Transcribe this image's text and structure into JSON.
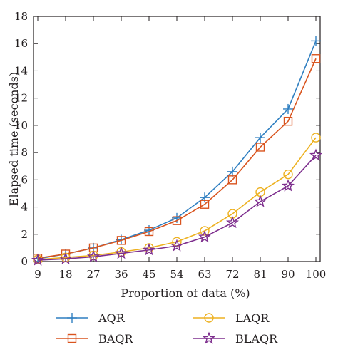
{
  "chart_data": {
    "type": "line",
    "xlabel": "Proportion of data (%)",
    "ylabel": "Elapsed time (seconds)",
    "categories": [
      "9",
      "18",
      "27",
      "36",
      "45",
      "54",
      "63",
      "72",
      "81",
      "90",
      "100"
    ],
    "ylim": [
      0,
      18
    ],
    "yticks": [
      0,
      2,
      4,
      6,
      8,
      10,
      12,
      14,
      16,
      18
    ],
    "grid": false,
    "legend_position": "bottom",
    "series": [
      {
        "name": "AQR",
        "color": "#2f7fc1",
        "marker": "plus",
        "values": [
          0.2,
          0.55,
          1.0,
          1.6,
          2.3,
          3.2,
          4.7,
          6.6,
          9.1,
          11.2,
          16.2
        ]
      },
      {
        "name": "BAQR",
        "color": "#d9541e",
        "marker": "square",
        "values": [
          0.25,
          0.55,
          1.0,
          1.55,
          2.2,
          3.0,
          4.2,
          6.0,
          8.4,
          10.3,
          14.9
        ]
      },
      {
        "name": "LAQR",
        "color": "#edb120",
        "marker": "circle",
        "values": [
          0.15,
          0.3,
          0.45,
          0.7,
          1.0,
          1.45,
          2.25,
          3.5,
          5.1,
          6.4,
          9.1
        ]
      },
      {
        "name": "BLAQR",
        "color": "#7e2f8e",
        "marker": "star",
        "values": [
          0.1,
          0.2,
          0.35,
          0.6,
          0.85,
          1.15,
          1.8,
          2.85,
          4.4,
          5.55,
          7.8
        ]
      }
    ]
  }
}
